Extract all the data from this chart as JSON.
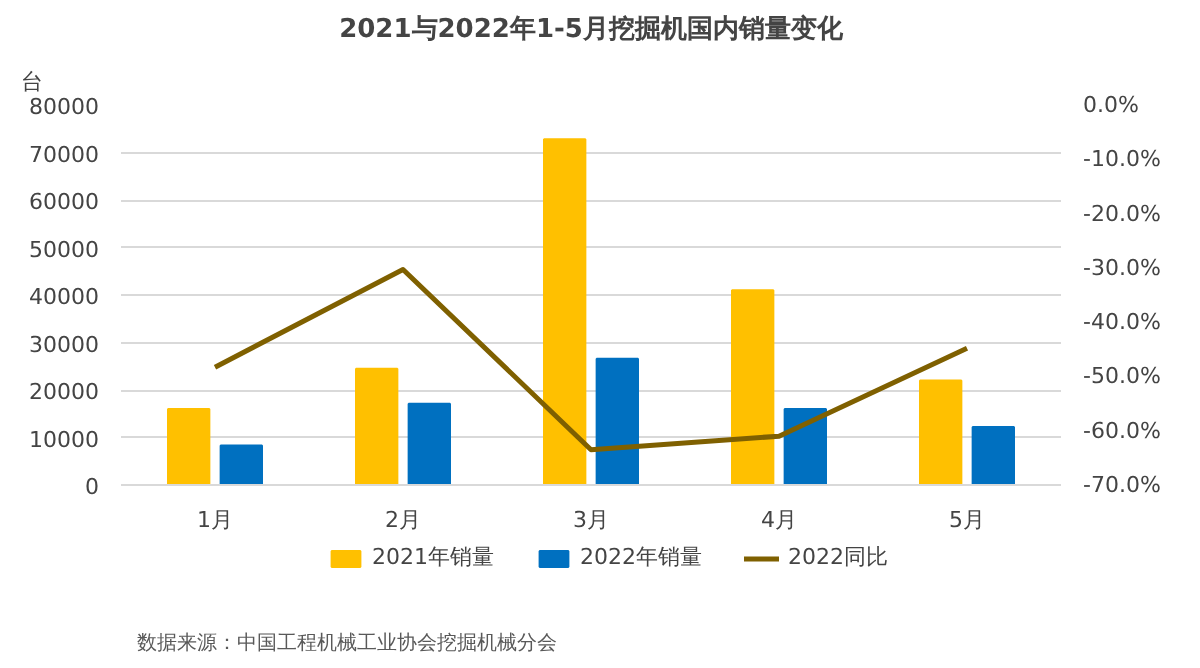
{
  "chart_data": {
    "type": "bar",
    "title": "2021与2022年1-5月挖掘机国内销量变化",
    "ylabel": "台",
    "categories": [
      "1月",
      "2月",
      "3月",
      "4月",
      "5月"
    ],
    "series": [
      {
        "name": "2021年销量",
        "type": "bar",
        "color": "#ffc000",
        "values": [
          16000,
          24500,
          72800,
          41000,
          22000
        ]
      },
      {
        "name": "2022年销量",
        "type": "bar",
        "color": "#0070c0",
        "values": [
          8300,
          17100,
          26600,
          16000,
          12200
        ]
      },
      {
        "name": "2022同比",
        "type": "line",
        "axis": "y2",
        "color": "#7f6000",
        "values": [
          -48.3,
          -30.3,
          -63.5,
          -61.0,
          -44.8
        ]
      }
    ],
    "ylim": [
      0,
      80000
    ],
    "yticks": [
      0,
      10000,
      20000,
      30000,
      40000,
      50000,
      60000,
      70000,
      80000
    ],
    "y2lim": [
      -70,
      0
    ],
    "y2ticks": [
      {
        "value": 0,
        "label": "0.0%"
      },
      {
        "value": -10,
        "label": "-10.0%"
      },
      {
        "value": -20,
        "label": "-20.0%"
      },
      {
        "value": -30,
        "label": "-30.0%"
      },
      {
        "value": -40,
        "label": "-40.0%"
      },
      {
        "value": -50,
        "label": "-50.0%"
      },
      {
        "value": -60,
        "label": "-60.0%"
      },
      {
        "value": -70,
        "label": "-70.0%"
      }
    ],
    "grid": "y",
    "legend": "bottom",
    "marker": "none",
    "annotations": [
      "数据来源：中国工程机械工业协会挖掘机械分会"
    ]
  }
}
